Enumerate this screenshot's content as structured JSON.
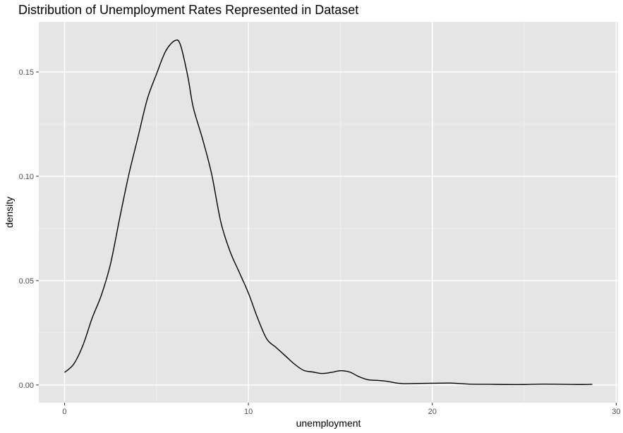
{
  "colors": {
    "panel_background": "#E5E5E5",
    "grid_major": "#FFFFFF",
    "grid_minor": "#F2F2F2",
    "line": "#000000",
    "tick_text": "#4D4D4D"
  },
  "chart_data": {
    "type": "area",
    "title": "Distribution of Unemployment Rates Represented in Dataset",
    "xlabel": "unemployment",
    "ylabel": "density",
    "xlim": [
      -1.4,
      30.1
    ],
    "ylim": [
      -0.0085,
      0.174
    ],
    "x_ticks": [
      0,
      10,
      20,
      30
    ],
    "x_tick_labels": [
      "0",
      "10",
      "20",
      "30"
    ],
    "y_ticks": [
      0.0,
      0.05,
      0.1,
      0.15
    ],
    "y_tick_labels": [
      "0.00",
      "0.05",
      "0.10",
      "0.15"
    ],
    "grid": true,
    "fill": "none",
    "series": [
      {
        "x": [
          0.0,
          0.5,
          1.0,
          1.5,
          2.0,
          2.5,
          3.0,
          3.5,
          4.0,
          4.5,
          5.0,
          5.5,
          6.0,
          6.3,
          6.7,
          7.0,
          7.5,
          8.0,
          8.5,
          9.0,
          9.5,
          10.0,
          10.5,
          11.0,
          11.5,
          12.0,
          12.5,
          13.0,
          13.5,
          14.0,
          14.5,
          15.0,
          15.5,
          16.0,
          16.5,
          17.0,
          17.5,
          18.0,
          18.5,
          19.0,
          20.0,
          21.0,
          22.0,
          23.0,
          24.0,
          25.0,
          26.0,
          27.0,
          28.0,
          28.7
        ],
        "y": [
          0.006,
          0.01,
          0.019,
          0.032,
          0.043,
          0.058,
          0.08,
          0.101,
          0.119,
          0.137,
          0.149,
          0.16,
          0.165,
          0.163,
          0.148,
          0.133,
          0.118,
          0.101,
          0.078,
          0.064,
          0.054,
          0.044,
          0.032,
          0.022,
          0.018,
          0.014,
          0.01,
          0.007,
          0.0062,
          0.0055,
          0.006,
          0.0068,
          0.0062,
          0.004,
          0.0025,
          0.0022,
          0.0018,
          0.001,
          0.0006,
          0.0007,
          0.0008,
          0.0009,
          0.0004,
          0.0003,
          0.0002,
          0.0002,
          0.0004,
          0.0003,
          0.0002,
          0.0003
        ]
      }
    ]
  }
}
